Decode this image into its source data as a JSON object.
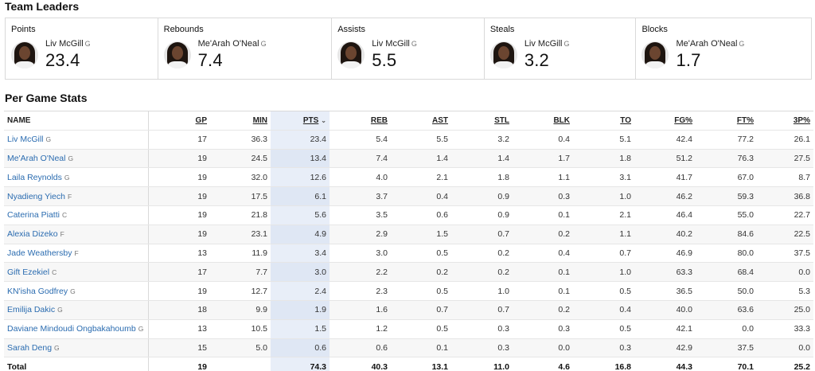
{
  "sections": {
    "leaders_title": "Team Leaders",
    "per_game_title": "Per Game Stats"
  },
  "leaders": [
    {
      "category": "Points",
      "player": "Liv McGill",
      "pos": "G",
      "value": "23.4"
    },
    {
      "category": "Rebounds",
      "player": "Me'Arah O'Neal",
      "pos": "G",
      "value": "7.4"
    },
    {
      "category": "Assists",
      "player": "Liv McGill",
      "pos": "G",
      "value": "5.5"
    },
    {
      "category": "Steals",
      "player": "Liv McGill",
      "pos": "G",
      "value": "3.2"
    },
    {
      "category": "Blocks",
      "player": "Me'Arah O'Neal",
      "pos": "G",
      "value": "1.7"
    }
  ],
  "table": {
    "headers": [
      "NAME",
      "GP",
      "MIN",
      "PTS",
      "REB",
      "AST",
      "STL",
      "BLK",
      "TO",
      "FG%",
      "FT%",
      "3P%"
    ],
    "sort_indicator": "chevron-down-icon",
    "rows": [
      {
        "name": "Liv McGill",
        "pos": "G",
        "stats": [
          "17",
          "36.3",
          "23.4",
          "5.4",
          "5.5",
          "3.2",
          "0.4",
          "5.1",
          "42.4",
          "77.2",
          "26.1"
        ]
      },
      {
        "name": "Me'Arah O'Neal",
        "pos": "G",
        "stats": [
          "19",
          "24.5",
          "13.4",
          "7.4",
          "1.4",
          "1.4",
          "1.7",
          "1.8",
          "51.2",
          "76.3",
          "27.5"
        ]
      },
      {
        "name": "Laila Reynolds",
        "pos": "G",
        "stats": [
          "19",
          "32.0",
          "12.6",
          "4.0",
          "2.1",
          "1.8",
          "1.1",
          "3.1",
          "41.7",
          "67.0",
          "8.7"
        ]
      },
      {
        "name": "Nyadieng Yiech",
        "pos": "F",
        "stats": [
          "19",
          "17.5",
          "6.1",
          "3.7",
          "0.4",
          "0.9",
          "0.3",
          "1.0",
          "46.2",
          "59.3",
          "36.8"
        ]
      },
      {
        "name": "Caterina Piatti",
        "pos": "C",
        "stats": [
          "19",
          "21.8",
          "5.6",
          "3.5",
          "0.6",
          "0.9",
          "0.1",
          "2.1",
          "46.4",
          "55.0",
          "22.7"
        ]
      },
      {
        "name": "Alexia Dizeko",
        "pos": "F",
        "stats": [
          "19",
          "23.1",
          "4.9",
          "2.9",
          "1.5",
          "0.7",
          "0.2",
          "1.1",
          "40.2",
          "84.6",
          "22.5"
        ]
      },
      {
        "name": "Jade Weathersby",
        "pos": "F",
        "stats": [
          "13",
          "11.9",
          "3.4",
          "3.0",
          "0.5",
          "0.2",
          "0.4",
          "0.7",
          "46.9",
          "80.0",
          "37.5"
        ]
      },
      {
        "name": "Gift Ezekiel",
        "pos": "C",
        "stats": [
          "17",
          "7.7",
          "3.0",
          "2.2",
          "0.2",
          "0.2",
          "0.1",
          "1.0",
          "63.3",
          "68.4",
          "0.0"
        ]
      },
      {
        "name": "KN'isha Godfrey",
        "pos": "G",
        "stats": [
          "19",
          "12.7",
          "2.4",
          "2.3",
          "0.5",
          "1.0",
          "0.1",
          "0.5",
          "36.5",
          "50.0",
          "5.3"
        ]
      },
      {
        "name": "Emilija Dakic",
        "pos": "G",
        "stats": [
          "18",
          "9.9",
          "1.9",
          "1.6",
          "0.7",
          "0.7",
          "0.2",
          "0.4",
          "40.0",
          "63.6",
          "25.0"
        ]
      },
      {
        "name": "Daviane Mindoudi Ongbakahoumb",
        "pos": "G",
        "stats": [
          "13",
          "10.5",
          "1.5",
          "1.2",
          "0.5",
          "0.3",
          "0.3",
          "0.5",
          "42.1",
          "0.0",
          "33.3"
        ]
      },
      {
        "name": "Sarah Deng",
        "pos": "G",
        "stats": [
          "15",
          "5.0",
          "0.6",
          "0.6",
          "0.1",
          "0.3",
          "0.0",
          "0.3",
          "42.9",
          "37.5",
          "0.0"
        ]
      }
    ],
    "total": {
      "label": "Total",
      "stats": [
        "19",
        "",
        "74.3",
        "40.3",
        "13.1",
        "11.0",
        "4.6",
        "16.8",
        "44.3",
        "70.1",
        "25.2"
      ]
    }
  }
}
